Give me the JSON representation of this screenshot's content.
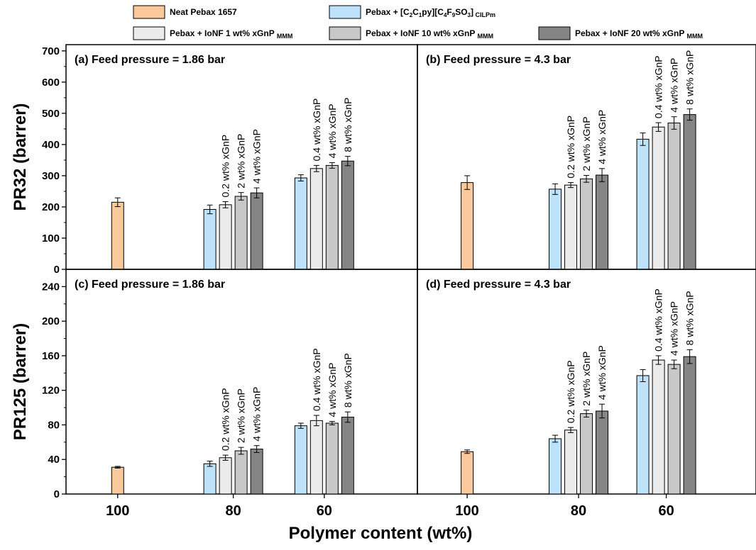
{
  "figure": {
    "xlabel": "Polymer content (wt%)",
    "legend": [
      {
        "key": "neat",
        "text": "Neat Pebax 1657",
        "color": "#F9C89B"
      },
      {
        "key": "cilpm",
        "html_parts": [
          "Pebax + [C",
          "2",
          "C",
          "1",
          "py][C",
          "4",
          "F",
          "9",
          "SO",
          "3",
          "]",
          " CILPm"
        ],
        "text": "Pebax + [C2C1py][C4F9SO3] CILPm",
        "color": "#BDE2F9"
      },
      {
        "key": "ionf1",
        "text": "Pebax + IoNF 1 wt% xGnP",
        "subscript": "MMM",
        "color": "#EBEBEB"
      },
      {
        "key": "ionf10",
        "text": "Pebax + IoNF 10 wt% xGnP",
        "subscript": "MMM",
        "color": "#C8C8C8"
      },
      {
        "key": "ionf20",
        "text": "Pebax + IoNF 20 wt% xGnP",
        "subscript": "MMM",
        "color": "#858585"
      }
    ]
  },
  "chart_data": [
    {
      "type": "bar",
      "panel": "a",
      "title": "(a) Feed pressure = 1.86 bar",
      "ylabel": "PR32 (barrer)",
      "ylim": [
        0,
        720
      ],
      "yticks": [
        0,
        100,
        200,
        300,
        400,
        500,
        600,
        700
      ],
      "categories": [
        "100",
        "80",
        "60"
      ],
      "series": [
        {
          "name": "Neat Pebax 1657",
          "values": [
            215,
            null,
            null
          ],
          "errors": [
            14,
            null,
            null
          ]
        },
        {
          "name": "Pebax + [C2C1py][C4F9SO3] CILPm",
          "values": [
            null,
            192,
            293
          ],
          "errors": [
            null,
            14,
            10
          ]
        },
        {
          "name": "Pebax + IoNF 1 wt% xGnP MMM",
          "values": [
            null,
            207,
            323
          ],
          "errors": [
            null,
            10,
            10
          ]
        },
        {
          "name": "Pebax + IoNF 10 wt% xGnP MMM",
          "values": [
            null,
            234,
            333
          ],
          "errors": [
            null,
            12,
            9
          ]
        },
        {
          "name": "Pebax + IoNF 20 wt% xGnP MMM",
          "values": [
            null,
            245,
            347
          ],
          "errors": [
            null,
            16,
            15
          ]
        }
      ],
      "bar_labels": {
        "80": [
          "0.2 wt% xGnP",
          "2 wt% xGnP",
          "4 wt% xGnP"
        ],
        "60": [
          "0.4 wt% xGnP",
          "4 wt% xGnP",
          "8 wt% xGnP"
        ]
      }
    },
    {
      "type": "bar",
      "panel": "b",
      "title": "(b) Feed pressure = 4.3 bar",
      "ylabel": "PR32 (barrer)",
      "ylim": [
        0,
        720
      ],
      "yticks": [
        0,
        100,
        200,
        300,
        400,
        500,
        600,
        700
      ],
      "categories": [
        "100",
        "80",
        "60"
      ],
      "series": [
        {
          "name": "Neat Pebax 1657",
          "values": [
            278,
            null,
            null
          ],
          "errors": [
            22,
            null,
            null
          ]
        },
        {
          "name": "Pebax + [C2C1py][C4F9SO3] CILPm",
          "values": [
            null,
            257,
            417
          ],
          "errors": [
            null,
            17,
            20
          ]
        },
        {
          "name": "Pebax + IoNF 1 wt% xGnP MMM",
          "values": [
            null,
            270,
            456
          ],
          "errors": [
            null,
            8,
            14
          ]
        },
        {
          "name": "Pebax + IoNF 10 wt% xGnP MMM",
          "values": [
            null,
            290,
            469
          ],
          "errors": [
            null,
            11,
            20
          ]
        },
        {
          "name": "Pebax + IoNF 20 wt% xGnP MMM",
          "values": [
            null,
            302,
            496
          ],
          "errors": [
            null,
            21,
            18
          ]
        }
      ],
      "bar_labels": {
        "80": [
          "0.2 wt% xGnP",
          "2 wt% xGnP",
          "4 wt% xGnP"
        ],
        "60": [
          "0.4 wt% xGnP",
          "4 wt% xGnP",
          "8 wt% xGnP"
        ]
      }
    },
    {
      "type": "bar",
      "panel": "c",
      "title": "(c) Feed pressure = 1.86 bar",
      "ylabel": "PR125 (barrer)",
      "ylim": [
        0,
        260
      ],
      "yticks": [
        0,
        40,
        80,
        120,
        160,
        200,
        240
      ],
      "categories": [
        "100",
        "80",
        "60"
      ],
      "series": [
        {
          "name": "Neat Pebax 1657",
          "values": [
            31,
            null,
            null
          ],
          "errors": [
            1,
            null,
            null
          ]
        },
        {
          "name": "Pebax + [C2C1py][C4F9SO3] CILPm",
          "values": [
            null,
            35,
            79
          ],
          "errors": [
            null,
            3,
            3
          ]
        },
        {
          "name": "Pebax + IoNF 1 wt% xGnP MMM",
          "values": [
            null,
            42,
            85
          ],
          "errors": [
            null,
            3,
            6
          ]
        },
        {
          "name": "Pebax + IoNF 10 wt% xGnP MMM",
          "values": [
            null,
            50,
            82
          ],
          "errors": [
            null,
            4,
            2
          ]
        },
        {
          "name": "Pebax + IoNF 20 wt% xGnP MMM",
          "values": [
            null,
            52,
            89
          ],
          "errors": [
            null,
            4,
            6
          ]
        }
      ],
      "bar_labels": {
        "80": [
          "0.2 wt% xGnP",
          "2 wt% xGnP",
          "4 wt% xGnP"
        ],
        "60": [
          "0.4 wt% xGnP",
          "4 wt% xGnP",
          "8 wt% xGnP"
        ]
      }
    },
    {
      "type": "bar",
      "panel": "d",
      "title": "(d) Feed pressure = 4.3 bar",
      "ylabel": "PR125 (barrer)",
      "ylim": [
        0,
        260
      ],
      "yticks": [
        0,
        40,
        80,
        120,
        160,
        200,
        240
      ],
      "categories": [
        "100",
        "80",
        "60"
      ],
      "series": [
        {
          "name": "Neat Pebax 1657",
          "values": [
            49,
            null,
            null
          ],
          "errors": [
            2,
            null,
            null
          ]
        },
        {
          "name": "Pebax + [C2C1py][C4F9SO3] CILPm",
          "values": [
            null,
            64,
            137
          ],
          "errors": [
            null,
            4,
            7
          ]
        },
        {
          "name": "Pebax + IoNF 1 wt% xGnP MMM",
          "values": [
            null,
            74,
            155
          ],
          "errors": [
            null,
            3,
            5
          ]
        },
        {
          "name": "Pebax + IoNF 10 wt% xGnP MMM",
          "values": [
            null,
            93,
            150
          ],
          "errors": [
            null,
            4,
            5
          ]
        },
        {
          "name": "Pebax + IoNF 20 wt% xGnP MMM",
          "values": [
            null,
            96,
            159
          ],
          "errors": [
            null,
            8,
            8
          ]
        }
      ],
      "bar_labels": {
        "80": [
          "0.2 wt% xGnP",
          "2 wt% xGnP",
          "4 wt% xGnP"
        ],
        "60": [
          "0.4 wt% xGnP",
          "4 wt% xGnP",
          "8 wt% xGnP"
        ]
      }
    }
  ]
}
